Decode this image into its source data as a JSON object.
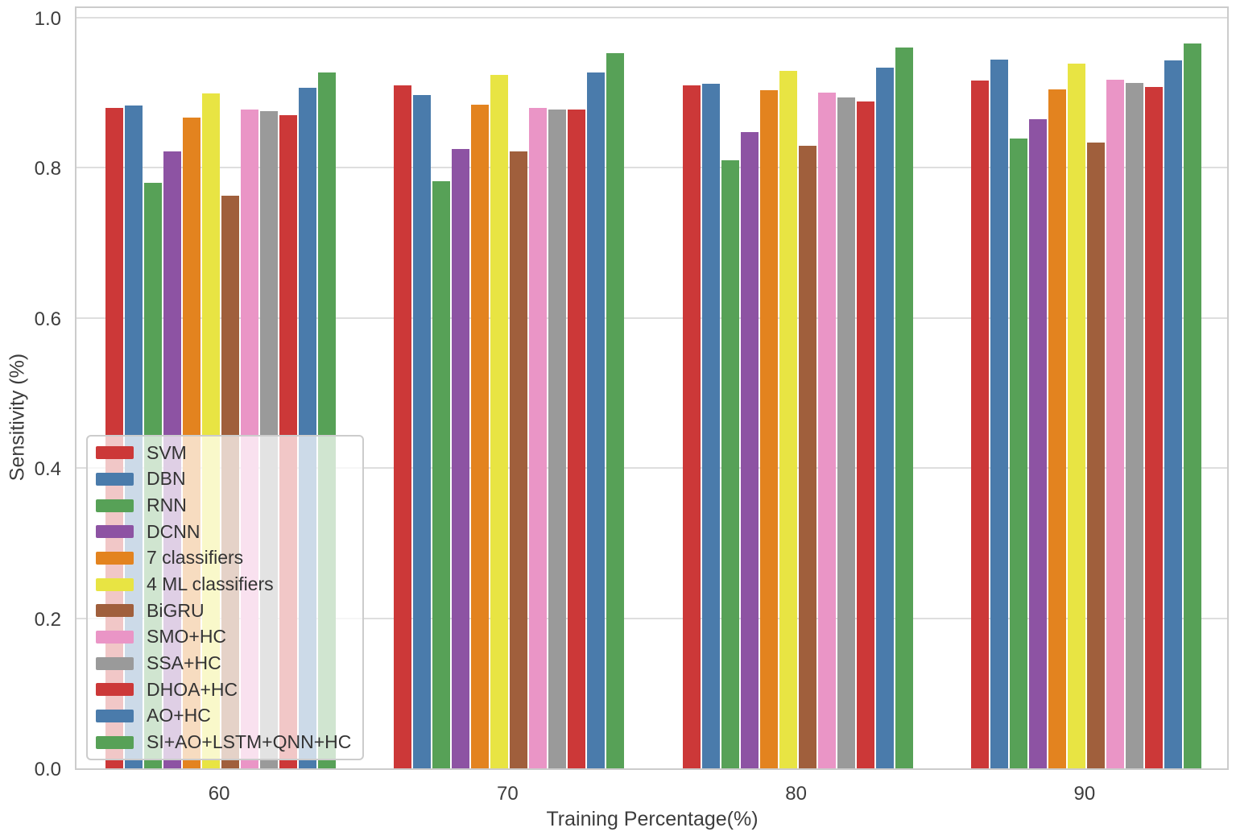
{
  "chart_data": {
    "type": "bar",
    "title": "",
    "xlabel": "Training Percentage(%)",
    "ylabel": "Sensitivity (%)",
    "categories": [
      "60",
      "70",
      "80",
      "90"
    ],
    "ytick_values": [
      0.0,
      0.2,
      0.4,
      0.6,
      0.8,
      1.0
    ],
    "ytick_labels": [
      "0.0",
      "0.2",
      "0.4",
      "0.6",
      "0.8",
      "1.0"
    ],
    "ylim": [
      0.0,
      1.017
    ],
    "grid": "horizontal",
    "legend_position": "lower left",
    "series": [
      {
        "name": "SVM",
        "color": "#cc3838",
        "values": [
          0.88,
          0.91,
          0.91,
          0.916
        ]
      },
      {
        "name": "DBN",
        "color": "#4a7bab",
        "values": [
          0.883,
          0.897,
          0.912,
          0.944
        ]
      },
      {
        "name": "RNN",
        "color": "#57a157",
        "values": [
          0.78,
          0.782,
          0.81,
          0.839
        ]
      },
      {
        "name": "DCNN",
        "color": "#8d53a3",
        "values": [
          0.822,
          0.825,
          0.848,
          0.865
        ]
      },
      {
        "name": "7 classifiers",
        "color": "#e3831f",
        "values": [
          0.867,
          0.884,
          0.903,
          0.904
        ]
      },
      {
        "name": "4 ML classifiers",
        "color": "#e8e443",
        "values": [
          0.899,
          0.924,
          0.929,
          0.939
        ]
      },
      {
        "name": "BiGRU",
        "color": "#a05f3c",
        "values": [
          0.763,
          0.822,
          0.829,
          0.834
        ]
      },
      {
        "name": "SMO+HC",
        "color": "#ea95c6",
        "values": [
          0.878,
          0.88,
          0.9,
          0.917
        ]
      },
      {
        "name": "SSA+HC",
        "color": "#9a9a9a",
        "values": [
          0.875,
          0.878,
          0.894,
          0.913
        ]
      },
      {
        "name": "DHOA+HC",
        "color": "#cc3838",
        "values": [
          0.87,
          0.878,
          0.888,
          0.908
        ]
      },
      {
        "name": "AO+HC",
        "color": "#4a7bab",
        "values": [
          0.907,
          0.927,
          0.933,
          0.943
        ]
      },
      {
        "name": "SI+AO+LSTM+QNN+HC",
        "color": "#57a157",
        "values": [
          0.927,
          0.953,
          0.96,
          0.966
        ]
      }
    ]
  }
}
